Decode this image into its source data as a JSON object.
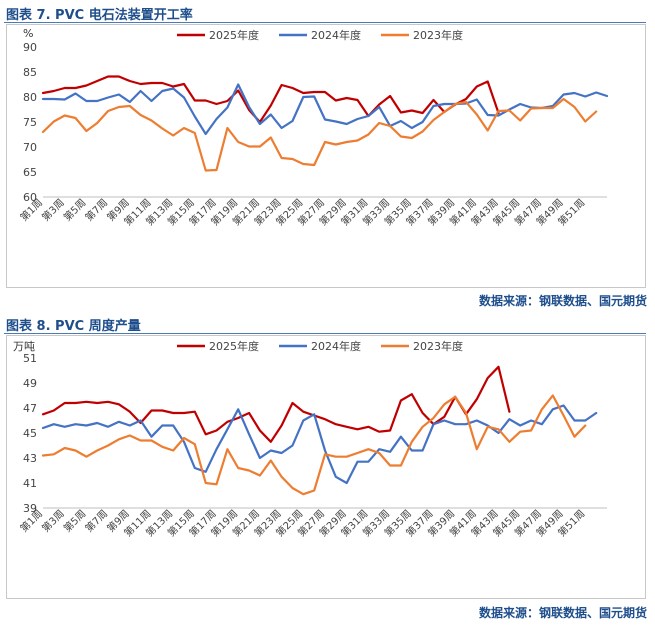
{
  "figures": [
    {
      "title": "图表 7.  PVC 电石法装置开工率",
      "source": "数据来源：钢联数据、国元期货"
    },
    {
      "title": "图表 8.  PVC 周度产量",
      "source": "数据来源：钢联数据、国元期货"
    }
  ],
  "chart_data": [
    {
      "type": "line",
      "title": "PVC 电石法装置开工率",
      "unit": "%",
      "xlabel": "",
      "ylabel": "",
      "ylim": [
        60,
        90
      ],
      "yticks": [
        60,
        65,
        70,
        75,
        80,
        85,
        90
      ],
      "xticks": [
        "第1周",
        "第3周",
        "第5周",
        "第7周",
        "第9周",
        "第11周",
        "第13周",
        "第15周",
        "第17周",
        "第19周",
        "第21周",
        "第23周",
        "第25周",
        "第27周",
        "第29周",
        "第31周",
        "第33周",
        "第35周",
        "第37周",
        "第39周",
        "第41周",
        "第43周",
        "第45周",
        "第47周",
        "第49周",
        "第51周"
      ],
      "grid": false,
      "legend": "top",
      "series": [
        {
          "name": "2025年度",
          "color": "#c00000",
          "values": [
            80.8,
            81.2,
            81.8,
            81.8,
            82.3,
            83.2,
            84.1,
            84.1,
            83.2,
            82.6,
            82.8,
            82.8,
            82.1,
            82.6,
            79.3,
            79.3,
            78.6,
            79.2,
            81.3,
            77.4,
            75.0,
            78.3,
            82.4,
            81.8,
            80.8,
            81.0,
            81.0,
            79.3,
            79.8,
            79.4,
            76.2,
            78.5,
            80.2,
            76.9,
            77.3,
            76.8,
            79.4,
            77.0,
            78.5,
            79.6,
            82.1,
            83.1,
            76.8
          ]
        },
        {
          "name": "2024年度",
          "color": "#4472c4",
          "values": [
            79.6,
            79.6,
            79.5,
            80.7,
            79.2,
            79.2,
            79.9,
            80.5,
            79.0,
            81.2,
            79.2,
            81.2,
            81.7,
            79.9,
            76.1,
            72.6,
            75.6,
            77.9,
            82.5,
            78.0,
            74.6,
            76.5,
            73.8,
            75.2,
            80.0,
            80.1,
            75.5,
            75.1,
            74.6,
            75.6,
            76.2,
            78.0,
            74.2,
            75.2,
            73.8,
            75.0,
            78.2,
            78.6,
            78.6,
            78.7,
            79.5,
            76.4,
            76.3,
            77.5,
            78.6,
            77.9,
            77.8,
            78.2,
            80.5,
            80.8,
            80.1,
            80.9,
            80.2
          ]
        },
        {
          "name": "2023年度",
          "color": "#ed7d31",
          "values": [
            73.0,
            75.1,
            76.3,
            75.8,
            73.2,
            74.8,
            77.2,
            78.0,
            78.2,
            76.4,
            75.3,
            73.7,
            72.3,
            73.8,
            72.8,
            65.3,
            65.4,
            73.8,
            71.0,
            70.1,
            70.1,
            71.9,
            67.8,
            67.6,
            66.6,
            66.4,
            71.0,
            70.5,
            71.0,
            71.3,
            72.5,
            74.8,
            74.2,
            72.1,
            71.8,
            73.1,
            75.4,
            77.0,
            78.6,
            79.0,
            76.5,
            73.3,
            77.2,
            77.3,
            75.3,
            77.7,
            77.8,
            77.8,
            79.6,
            78.0,
            75.1,
            77.1
          ]
        }
      ]
    },
    {
      "type": "line",
      "title": "PVC 周度产量",
      "unit": "万吨",
      "xlabel": "",
      "ylabel": "",
      "ylim": [
        39,
        51
      ],
      "yticks": [
        39,
        41,
        43,
        45,
        47,
        49,
        51
      ],
      "xticks": [
        "第1周",
        "第3周",
        "第5周",
        "第7周",
        "第9周",
        "第11周",
        "第13周",
        "第15周",
        "第17周",
        "第19周",
        "第21周",
        "第23周",
        "第25周",
        "第27周",
        "第29周",
        "第31周",
        "第33周",
        "第35周",
        "第37周",
        "第39周",
        "第41周",
        "第43周",
        "第45周",
        "第47周",
        "第49周",
        "第51周"
      ],
      "grid": false,
      "legend": "top",
      "series": [
        {
          "name": "2025年度",
          "color": "#c00000",
          "values": [
            46.5,
            46.8,
            47.4,
            47.4,
            47.5,
            47.4,
            47.5,
            47.3,
            46.7,
            45.8,
            46.8,
            46.8,
            46.6,
            46.6,
            46.7,
            44.9,
            45.2,
            45.9,
            46.2,
            46.6,
            45.2,
            44.3,
            45.6,
            47.4,
            46.7,
            46.4,
            46.1,
            45.7,
            45.5,
            45.3,
            45.5,
            45.1,
            45.2,
            47.6,
            48.1,
            46.6,
            45.7,
            46.3,
            47.9,
            46.5,
            47.7,
            49.4,
            50.3,
            46.7
          ]
        },
        {
          "name": "2024年度",
          "color": "#4472c4",
          "values": [
            45.4,
            45.7,
            45.5,
            45.7,
            45.6,
            45.8,
            45.5,
            45.9,
            45.6,
            46.0,
            44.7,
            45.6,
            45.6,
            44.3,
            42.2,
            41.9,
            43.7,
            45.3,
            46.9,
            44.9,
            43.0,
            43.6,
            43.4,
            44.0,
            46.0,
            46.5,
            43.6,
            41.5,
            41.0,
            42.7,
            42.7,
            43.7,
            43.5,
            44.7,
            43.6,
            43.6,
            45.7,
            46.0,
            45.7,
            45.7,
            46.0,
            45.6,
            45.0,
            46.1,
            45.6,
            46.0,
            45.7,
            46.9,
            47.2,
            46.0,
            46.0,
            46.6
          ]
        },
        {
          "name": "2023年度",
          "color": "#ed7d31",
          "values": [
            43.2,
            43.3,
            43.8,
            43.6,
            43.1,
            43.6,
            44.0,
            44.5,
            44.8,
            44.4,
            44.4,
            43.9,
            43.6,
            44.6,
            44.1,
            41.0,
            40.9,
            43.7,
            42.2,
            42.0,
            41.6,
            42.8,
            41.5,
            40.6,
            40.1,
            40.4,
            43.3,
            43.1,
            43.1,
            43.4,
            43.7,
            43.4,
            42.4,
            42.4,
            44.3,
            45.5,
            46.2,
            47.3,
            47.9,
            46.6,
            43.7,
            45.5,
            45.3,
            44.3,
            45.1,
            45.2,
            46.9,
            48.0,
            46.4,
            44.7,
            45.6
          ]
        }
      ]
    }
  ]
}
